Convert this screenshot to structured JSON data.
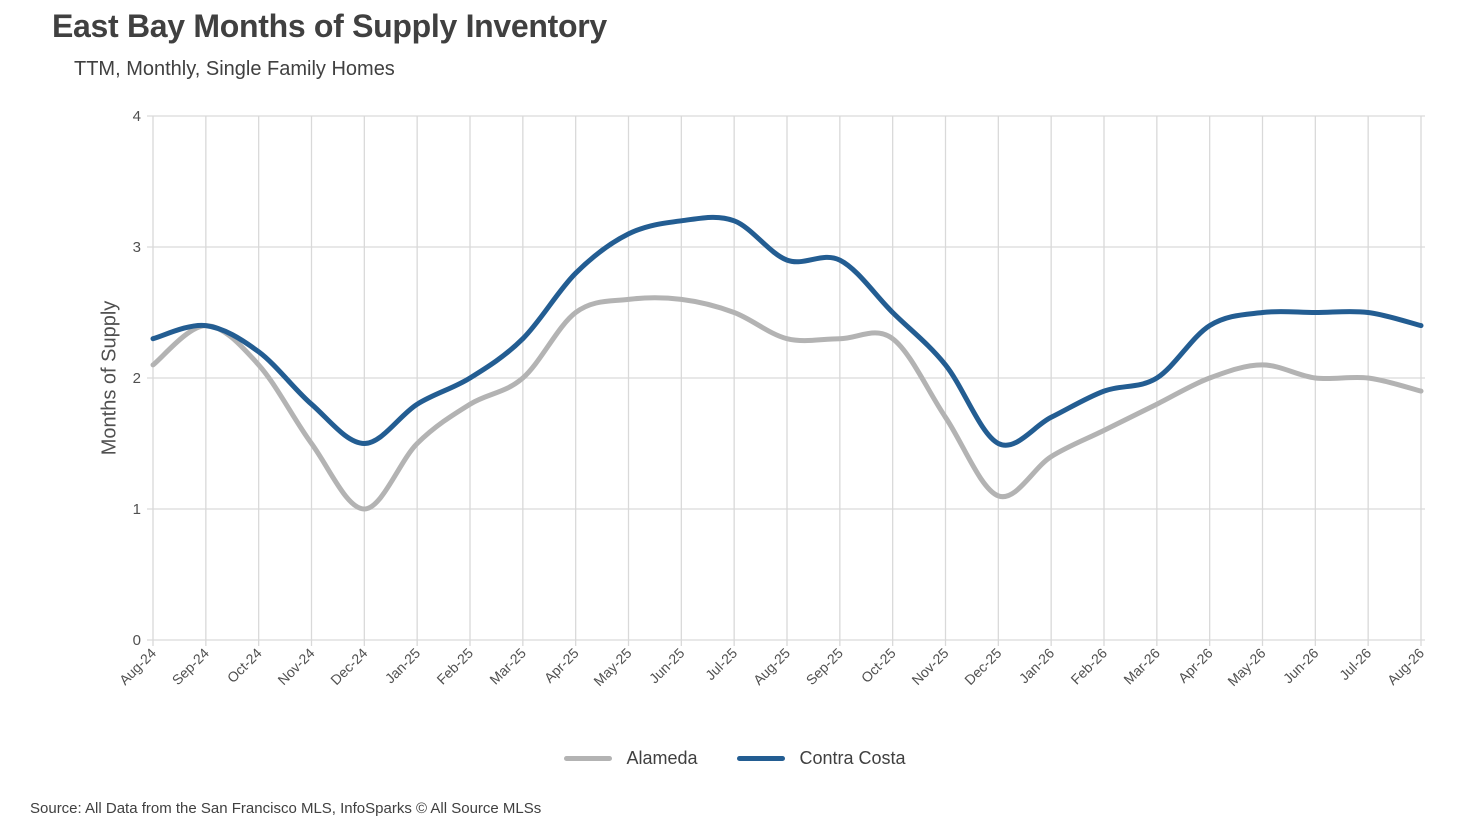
{
  "title": "East Bay Months of Supply Inventory",
  "subtitle": "TTM, Monthly, Single Family Homes",
  "source": "Source: All Data from the San Francisco MLS, InfoSparks © All Source MLSs",
  "colors": {
    "alameda": "#b3b3b3",
    "contra_costa": "#235d92",
    "grid": "#d9d9d9"
  },
  "chart_data": {
    "type": "line",
    "ylabel": "Months of Supply",
    "xlabel": "",
    "ylim": [
      0,
      4
    ],
    "yticks": [
      "0",
      "1",
      "2",
      "3",
      "4"
    ],
    "grid": true,
    "legend_position": "bottom",
    "categories": [
      "Aug-24",
      "Sep-24",
      "Oct-24",
      "Nov-24",
      "Dec-24",
      "Jan-25",
      "Feb-25",
      "Mar-25",
      "Apr-25",
      "May-25",
      "Jun-25",
      "Jul-25",
      "Aug-25",
      "Sep-25",
      "Oct-25",
      "Nov-25",
      "Dec-25",
      "Jan-26",
      "Feb-26",
      "Mar-26",
      "Apr-26",
      "May-26",
      "Jun-26",
      "Jul-26",
      "Aug-26"
    ],
    "series": [
      {
        "name": "Alameda",
        "color": "#b3b3b3",
        "values": [
          2.1,
          2.4,
          2.1,
          1.5,
          1.0,
          1.5,
          1.8,
          2.0,
          2.5,
          2.6,
          2.6,
          2.5,
          2.3,
          2.3,
          2.3,
          1.7,
          1.1,
          1.4,
          1.6,
          1.8,
          2.0,
          2.1,
          2.0,
          2.0,
          1.9
        ]
      },
      {
        "name": "Contra Costa",
        "color": "#235d92",
        "values": [
          2.3,
          2.4,
          2.2,
          1.8,
          1.5,
          1.8,
          2.0,
          2.3,
          2.8,
          3.1,
          3.2,
          3.2,
          2.9,
          2.9,
          2.5,
          2.1,
          1.5,
          1.7,
          1.9,
          2.0,
          2.4,
          2.5,
          2.5,
          2.5,
          2.4
        ]
      }
    ]
  }
}
